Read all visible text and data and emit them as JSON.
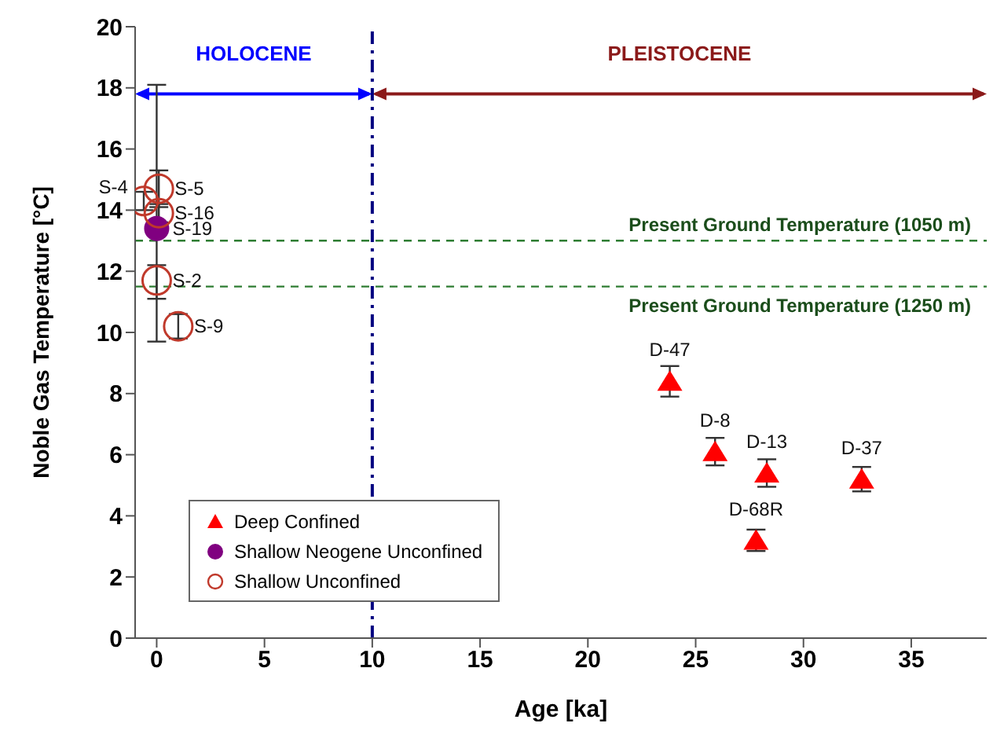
{
  "chart_data": {
    "type": "scatter",
    "xlabel": "Age [ka]",
    "ylabel": "Noble Gas Temperature [°C]",
    "xlim": [
      -1,
      38.5
    ],
    "xticks": [
      0,
      5,
      10,
      15,
      20,
      25,
      30,
      35
    ],
    "ylim": [
      0,
      20
    ],
    "yticks": [
      0,
      2,
      4,
      6,
      8,
      10,
      12,
      14,
      16,
      18,
      20
    ],
    "grid": false,
    "legend": "bottom left",
    "series": [
      {
        "name": "Deep Confined",
        "color": "#ff0000",
        "marker": "triangle",
        "x": [
          23.8,
          25.9,
          28.3,
          32.7,
          27.8
        ],
        "values": [
          8.4,
          6.1,
          5.4,
          5.2,
          3.2
        ],
        "errors": [
          0.5,
          0.45,
          0.45,
          0.4,
          0.35
        ]
      },
      {
        "name": "Shallow Neogene Unconfined",
        "color": "#800080",
        "marker": "circle",
        "x": [
          0
        ],
        "values": [
          13.4
        ],
        "errors": [
          [
            9.7,
            18.1
          ]
        ]
      },
      {
        "name": "Shallow Unconfined",
        "color": "#c0392b",
        "marker": "open circle",
        "x": [
          -0.6,
          0.1,
          0.1,
          0,
          1.0
        ],
        "values": [
          14.3,
          14.7,
          13.9,
          11.7,
          10.2
        ],
        "errors": [
          0.3,
          0.6,
          0.3,
          [
            11.1,
            12.2
          ],
          0.4
        ]
      }
    ],
    "ref_lines": [
      {
        "axis": "y",
        "value": 13,
        "label": "Present Ground Temperature (1050 m)",
        "color": "#2e7d32",
        "line_style": "dashed"
      },
      {
        "axis": "y",
        "value": 11.5,
        "label": "Present Ground Temperature (1250 m)",
        "color": "#2e7d32",
        "line_style": "dashed"
      },
      {
        "axis": "x",
        "value": 10,
        "color": "#000080",
        "line_style": "dashdot"
      }
    ],
    "annotations": [
      "HOLOCENE",
      "PLEISTOCENE",
      {
        "text": "S-4",
        "x": -0.6,
        "y": 14.3
      },
      {
        "text": "S-5",
        "x": 0.1,
        "y": 14.7
      },
      {
        "text": "S-16",
        "x": 0.1,
        "y": 13.9
      },
      {
        "text": "S-19",
        "x": 0,
        "y": 13.4
      },
      {
        "text": "S-2",
        "x": 0,
        "y": 11.7
      },
      {
        "text": "S-9",
        "x": 1.0,
        "y": 10.2
      },
      {
        "text": "D-47",
        "x": 23.8,
        "y": 8.4
      },
      {
        "text": "D-8",
        "x": 25.9,
        "y": 6.1
      },
      {
        "text": "D-13",
        "x": 28.3,
        "y": 5.4
      },
      {
        "text": "D-37",
        "x": 32.7,
        "y": 5.2
      },
      {
        "text": "D-68R",
        "x": 27.8,
        "y": 3.2
      }
    ]
  }
}
